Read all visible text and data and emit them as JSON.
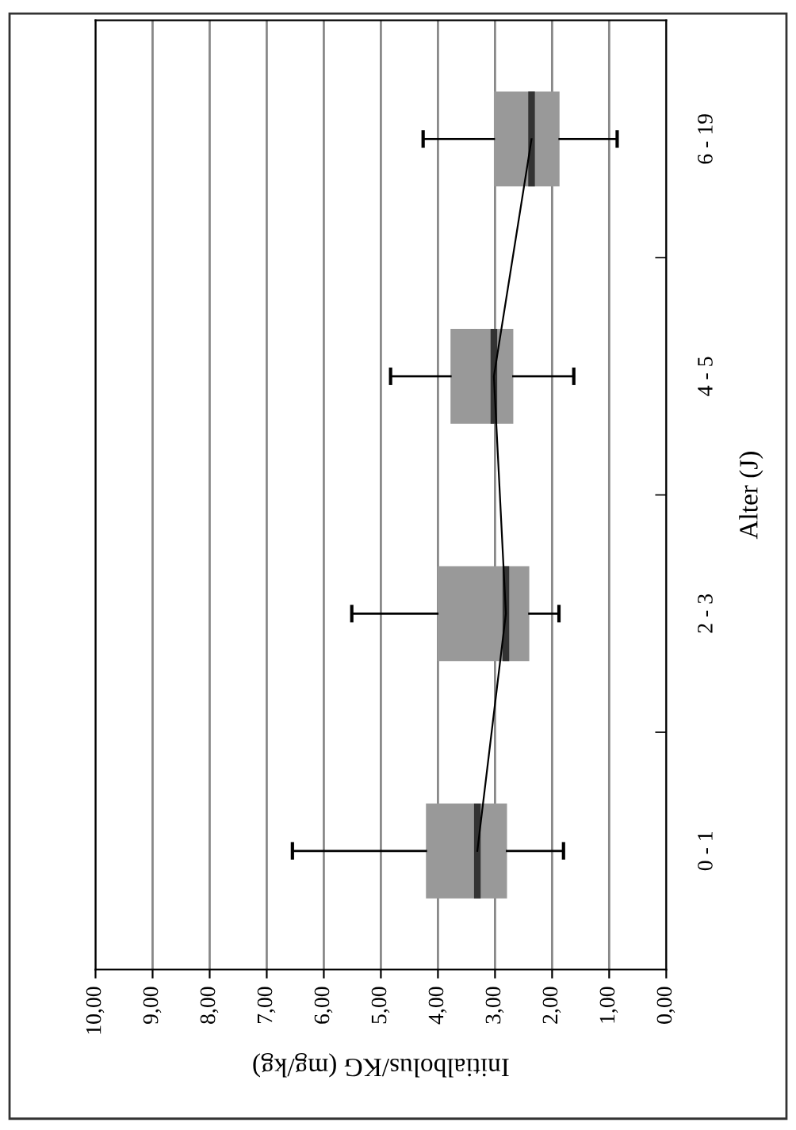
{
  "chart_data": {
    "type": "box",
    "orientation": "horizontal",
    "xlabel": "Initialbolus/KG (mg/kg)",
    "ylabel": "Alter (J)",
    "categories": [
      "6 - 19",
      "4 - 5",
      "2 - 3",
      "0 - 1"
    ],
    "boxes": [
      {
        "low": 0.86,
        "q1": 1.87,
        "median": 2.36,
        "q3": 3.02,
        "high": 4.26
      },
      {
        "low": 1.62,
        "q1": 2.68,
        "median": 3.02,
        "q3": 3.78,
        "high": 4.83
      },
      {
        "low": 1.88,
        "q1": 2.4,
        "median": 2.81,
        "q3": 4.01,
        "high": 5.51
      },
      {
        "low": 1.8,
        "q1": 2.79,
        "median": 3.31,
        "q3": 4.21,
        "high": 6.55
      }
    ],
    "color": "#999999",
    "series": [
      {
        "type": "line",
        "color": "#000000",
        "values": [
          2.36,
          3.02,
          2.81,
          3.31
        ]
      }
    ],
    "xlim": [
      10,
      0
    ],
    "xticks": [
      {
        "value": 10,
        "label": "10,00"
      },
      {
        "value": 9,
        "label": "9,00"
      },
      {
        "value": 8,
        "label": "8,00"
      },
      {
        "value": 7,
        "label": "7,00"
      },
      {
        "value": 6,
        "label": "6,00"
      },
      {
        "value": 5,
        "label": "5,00"
      },
      {
        "value": 4,
        "label": "4,00"
      },
      {
        "value": 3,
        "label": "3,00"
      },
      {
        "value": 2,
        "label": "2,00"
      },
      {
        "value": 1,
        "label": "1,00"
      },
      {
        "value": 0,
        "label": "0,00"
      }
    ],
    "grid": "x"
  }
}
